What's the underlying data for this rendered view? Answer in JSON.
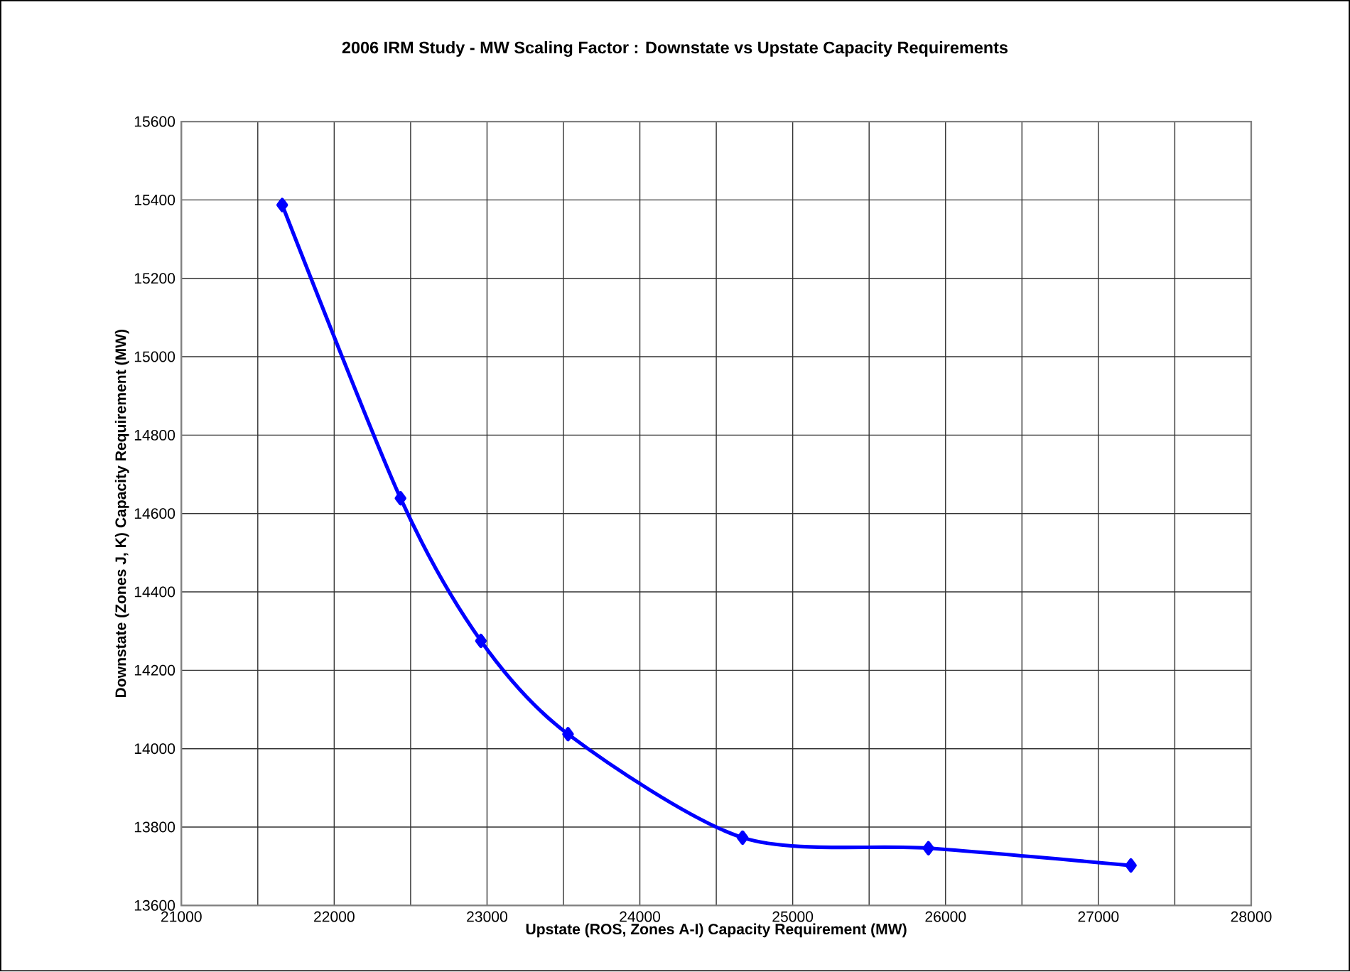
{
  "chart_data": {
    "type": "line",
    "title": "2006 IRM Study - MW Scaling Factor : Downstate vs Upstate Capacity Requirements",
    "xlabel": "Upstate (ROS, Zones A-I) Capacity Requirement (MW)",
    "ylabel": "Downstate (Zones J, K) Capacity Requirement (MW)",
    "x": [
      21660,
      22434,
      22960,
      23530,
      24672,
      25888,
      27213
    ],
    "series": [
      {
        "color": "#0000ff",
        "values": [
          15387,
          14639,
          14275,
          14037,
          13773,
          13746,
          13702
        ]
      }
    ],
    "xlim": [
      21000,
      28000
    ],
    "xticks": [
      21000,
      {
        "value": 21500,
        "label": null
      },
      22000,
      {
        "value": 22500,
        "label": null
      },
      23000,
      {
        "value": 23500,
        "label": null
      },
      24000,
      {
        "value": 24500,
        "label": null
      },
      25000,
      {
        "value": 25500,
        "label": null
      },
      26000,
      {
        "value": 26500,
        "label": null
      },
      27000,
      {
        "value": 27500,
        "label": null
      },
      28000
    ],
    "ylim": [
      13600,
      15600
    ],
    "yticks": [
      13600,
      13800,
      14000,
      14200,
      14400,
      14600,
      14800,
      15000,
      15200,
      15400,
      15600
    ],
    "grid": true,
    "marker": "diamond",
    "line_style": "solid"
  }
}
